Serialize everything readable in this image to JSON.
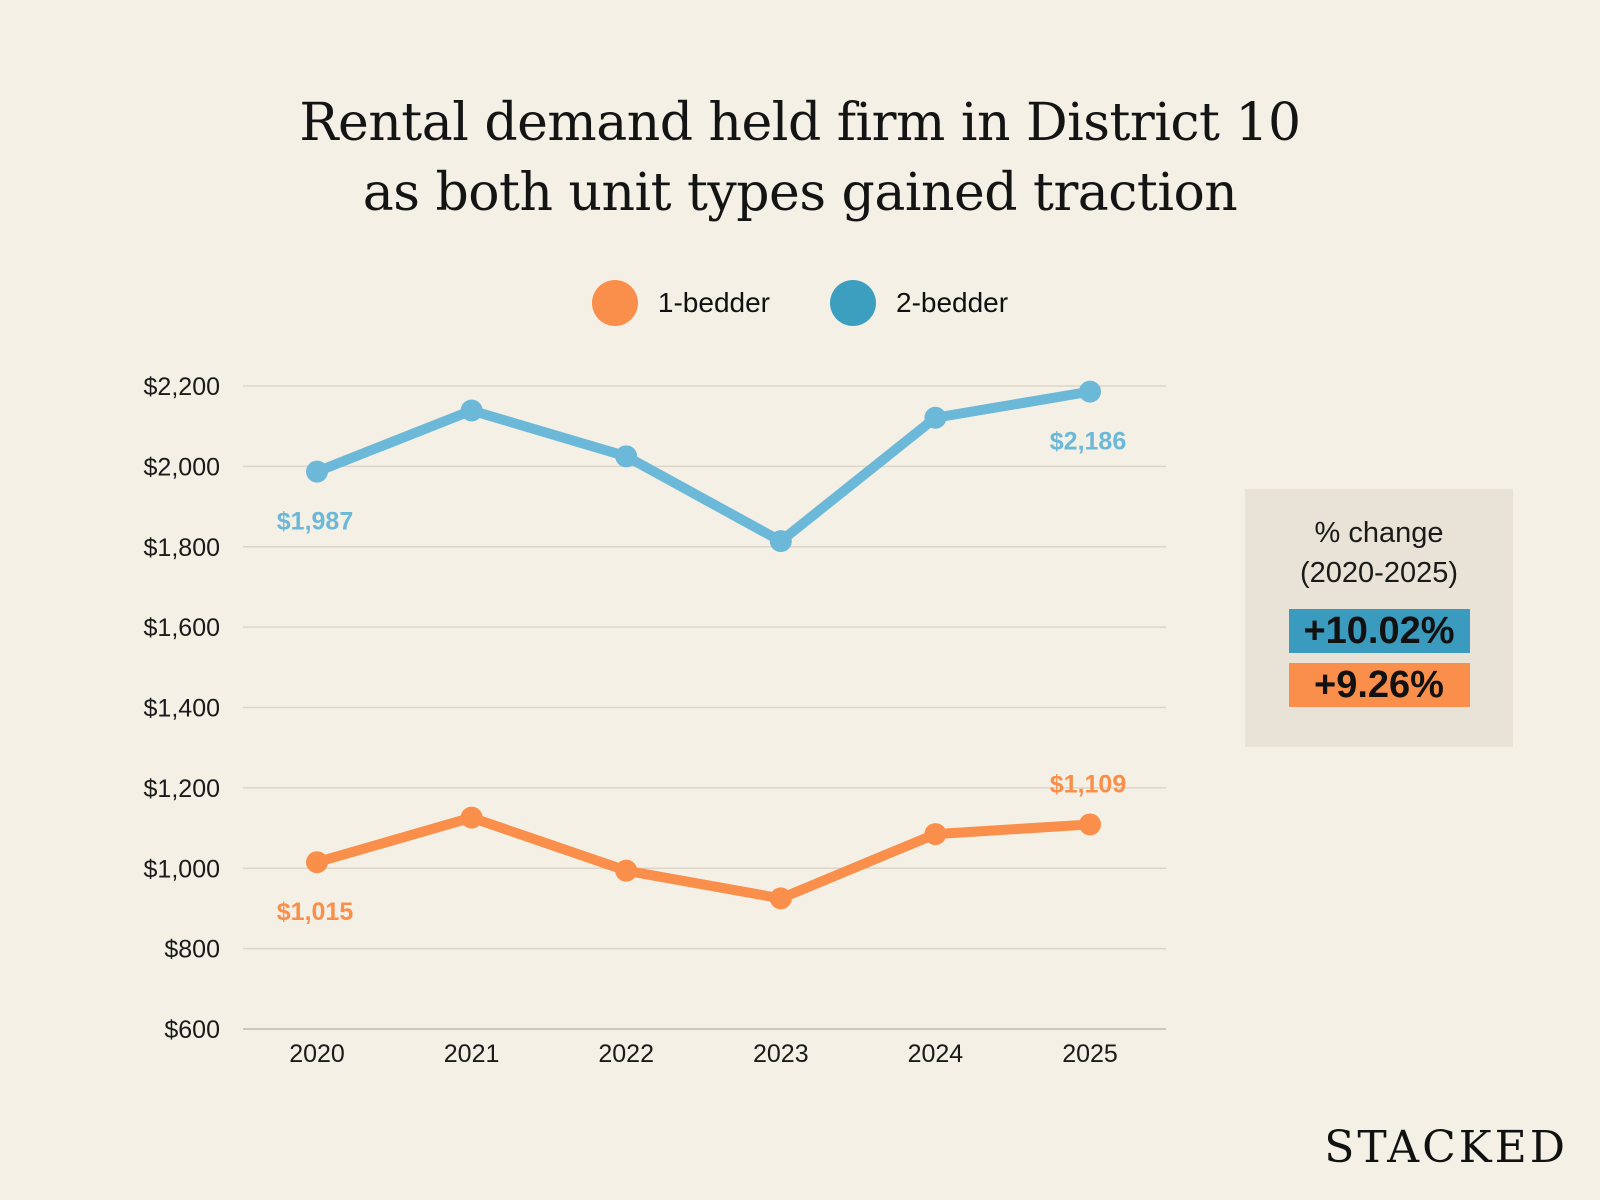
{
  "title_lines": [
    "Rental demand held firm in District 10",
    "as both unit types gained traction"
  ],
  "legend": [
    {
      "label": "1-bedder",
      "color": "#f98f4a"
    },
    {
      "label": "2-bedder",
      "color": "#3c9fc0"
    }
  ],
  "summary": {
    "heading_lines": [
      "% change",
      "(2020-2025)"
    ],
    "two_bedder": "+10.02%",
    "one_bedder": "+9.26%",
    "two_color": "#3a9bbf",
    "one_color": "#f98f4a"
  },
  "logo": "STACKED",
  "chart_data": {
    "type": "line",
    "title": "Rental demand held firm in District 10 as both unit types gained traction",
    "x": [
      "2020",
      "2021",
      "2022",
      "2023",
      "2024",
      "2025"
    ],
    "ylim": [
      600,
      2200
    ],
    "yticks": [
      600,
      800,
      1000,
      1200,
      1400,
      1600,
      1800,
      2000,
      2200
    ],
    "ytick_labels": [
      "$600",
      "$800",
      "$1,000",
      "$1,200",
      "$1,400",
      "$1,600",
      "$1,800",
      "$2,000",
      "$2,200"
    ],
    "grid": "horizontal",
    "legend_position": "top",
    "series": [
      {
        "name": "1-bedder",
        "color": "#f98f4a",
        "values": [
          1015,
          1126,
          994,
          925,
          1085,
          1109
        ],
        "labels": [
          {
            "index": 0,
            "text": "$1,015",
            "pos": "below"
          },
          {
            "index": 5,
            "text": "$1,109",
            "pos": "above"
          }
        ]
      },
      {
        "name": "2-bedder",
        "color": "#6bb8d8",
        "values": [
          1987,
          2139,
          2025,
          1814,
          2121,
          2186
        ],
        "labels": [
          {
            "index": 0,
            "text": "$1,987",
            "pos": "below"
          },
          {
            "index": 5,
            "text": "$2,186",
            "pos": "below"
          }
        ]
      }
    ]
  }
}
